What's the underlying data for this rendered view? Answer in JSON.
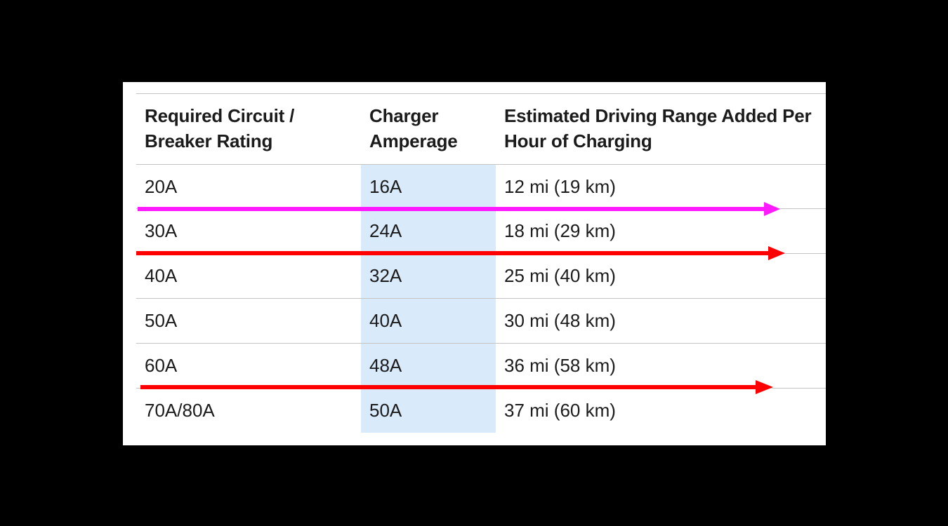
{
  "table": {
    "headers": [
      "Required Circuit / Breaker Rating",
      "Charger Amperage",
      "Estimated Driving Range Added Per Hour of Charging"
    ],
    "header_lines": [
      [
        "Required Circuit /",
        "Breaker Rating"
      ],
      [
        "Charger",
        "Amperage"
      ],
      [
        "Estimated Driving Range Added Per",
        "Hour of Charging"
      ]
    ],
    "rows": [
      [
        "20A",
        "16A",
        "12 mi (19 km)"
      ],
      [
        "30A",
        "24A",
        "18 mi (29 km)"
      ],
      [
        "40A",
        "32A",
        "25 mi (40 km)"
      ],
      [
        "50A",
        "40A",
        "30 mi (48 km)"
      ],
      [
        "60A",
        "48A",
        "36 mi (58 km)"
      ],
      [
        "70A/80A",
        "50A",
        "37 mi (60 km)"
      ]
    ],
    "highlight_column_index": 1
  },
  "colors": {
    "background": "#000000",
    "panel": "#ffffff",
    "highlight_column": "#d9eafb",
    "rule": "#c4c4c4",
    "text": "#1b1b1b",
    "arrow_magenta": "#ff1aff",
    "arrow_red": "#ff0000"
  },
  "annotations": [
    {
      "type": "arrow",
      "color": "magenta",
      "between_rows": [
        "20A",
        "30A"
      ]
    },
    {
      "type": "arrow",
      "color": "red",
      "between_rows": [
        "30A",
        "40A"
      ]
    },
    {
      "type": "arrow",
      "color": "red",
      "between_rows": [
        "60A",
        "70A/80A"
      ]
    }
  ]
}
